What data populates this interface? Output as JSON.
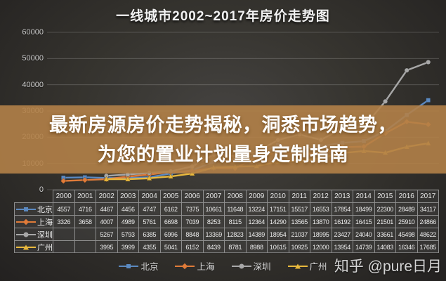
{
  "title": "一线城市2002~2017年房价走势图",
  "overlay": {
    "line1": "最新房源房价走势揭秘，洞悉市场趋势，",
    "line2": "为您的置业计划量身定制指南",
    "bg_color": "#b28148"
  },
  "watermark": "知乎 @pure日月",
  "chart_data": {
    "type": "line",
    "title": "一线城市2002~2017年房价走势图",
    "categories": [
      "2000",
      "2001",
      "2002",
      "2003",
      "2004",
      "2005",
      "2006",
      "2007",
      "2008",
      "2009",
      "2010",
      "2011",
      "2012",
      "2013",
      "2014",
      "2015",
      "2016",
      "2017"
    ],
    "series": [
      {
        "name": "北京",
        "color": "#5b89c0",
        "marker": "square",
        "values": [
          4557,
          4716,
          4467,
          4456,
          4747,
          6162,
          7375,
          10661,
          11648,
          13224,
          17151,
          15517,
          16553,
          17854,
          18499,
          22300,
          28489,
          34117
        ]
      },
      {
        "name": "上海",
        "color": "#e07b39",
        "marker": "diamond",
        "values": [
          3326,
          3658,
          4007,
          4989,
          5761,
          6698,
          7039,
          8253,
          8115,
          12364,
          14290,
          13565,
          13870,
          16192,
          16415,
          21501,
          25910,
          24866
        ]
      },
      {
        "name": "深圳",
        "color": "#a8a8a8",
        "marker": "circle",
        "values": [
          null,
          null,
          5267,
          5793,
          6385,
          6996,
          8848,
          13369,
          12823,
          14389,
          18954,
          21037,
          18995,
          23427,
          24040,
          33661,
          45498,
          48622
        ]
      },
      {
        "name": "广州",
        "color": "#e9b93d",
        "marker": "triangle",
        "values": [
          null,
          null,
          3995,
          3999,
          4355,
          5041,
          6152,
          8439,
          8781,
          8988,
          10615,
          10925,
          12000,
          13954,
          14739,
          14083,
          16346,
          17685
        ]
      }
    ],
    "ylim": [
      0,
      60000
    ],
    "y_ticks": [
      60000,
      50000,
      40000,
      30000,
      20000,
      10000,
      0
    ],
    "grid": true,
    "legend_position": "bottom",
    "grid_color": "rgba(255,255,255,0.22)"
  }
}
